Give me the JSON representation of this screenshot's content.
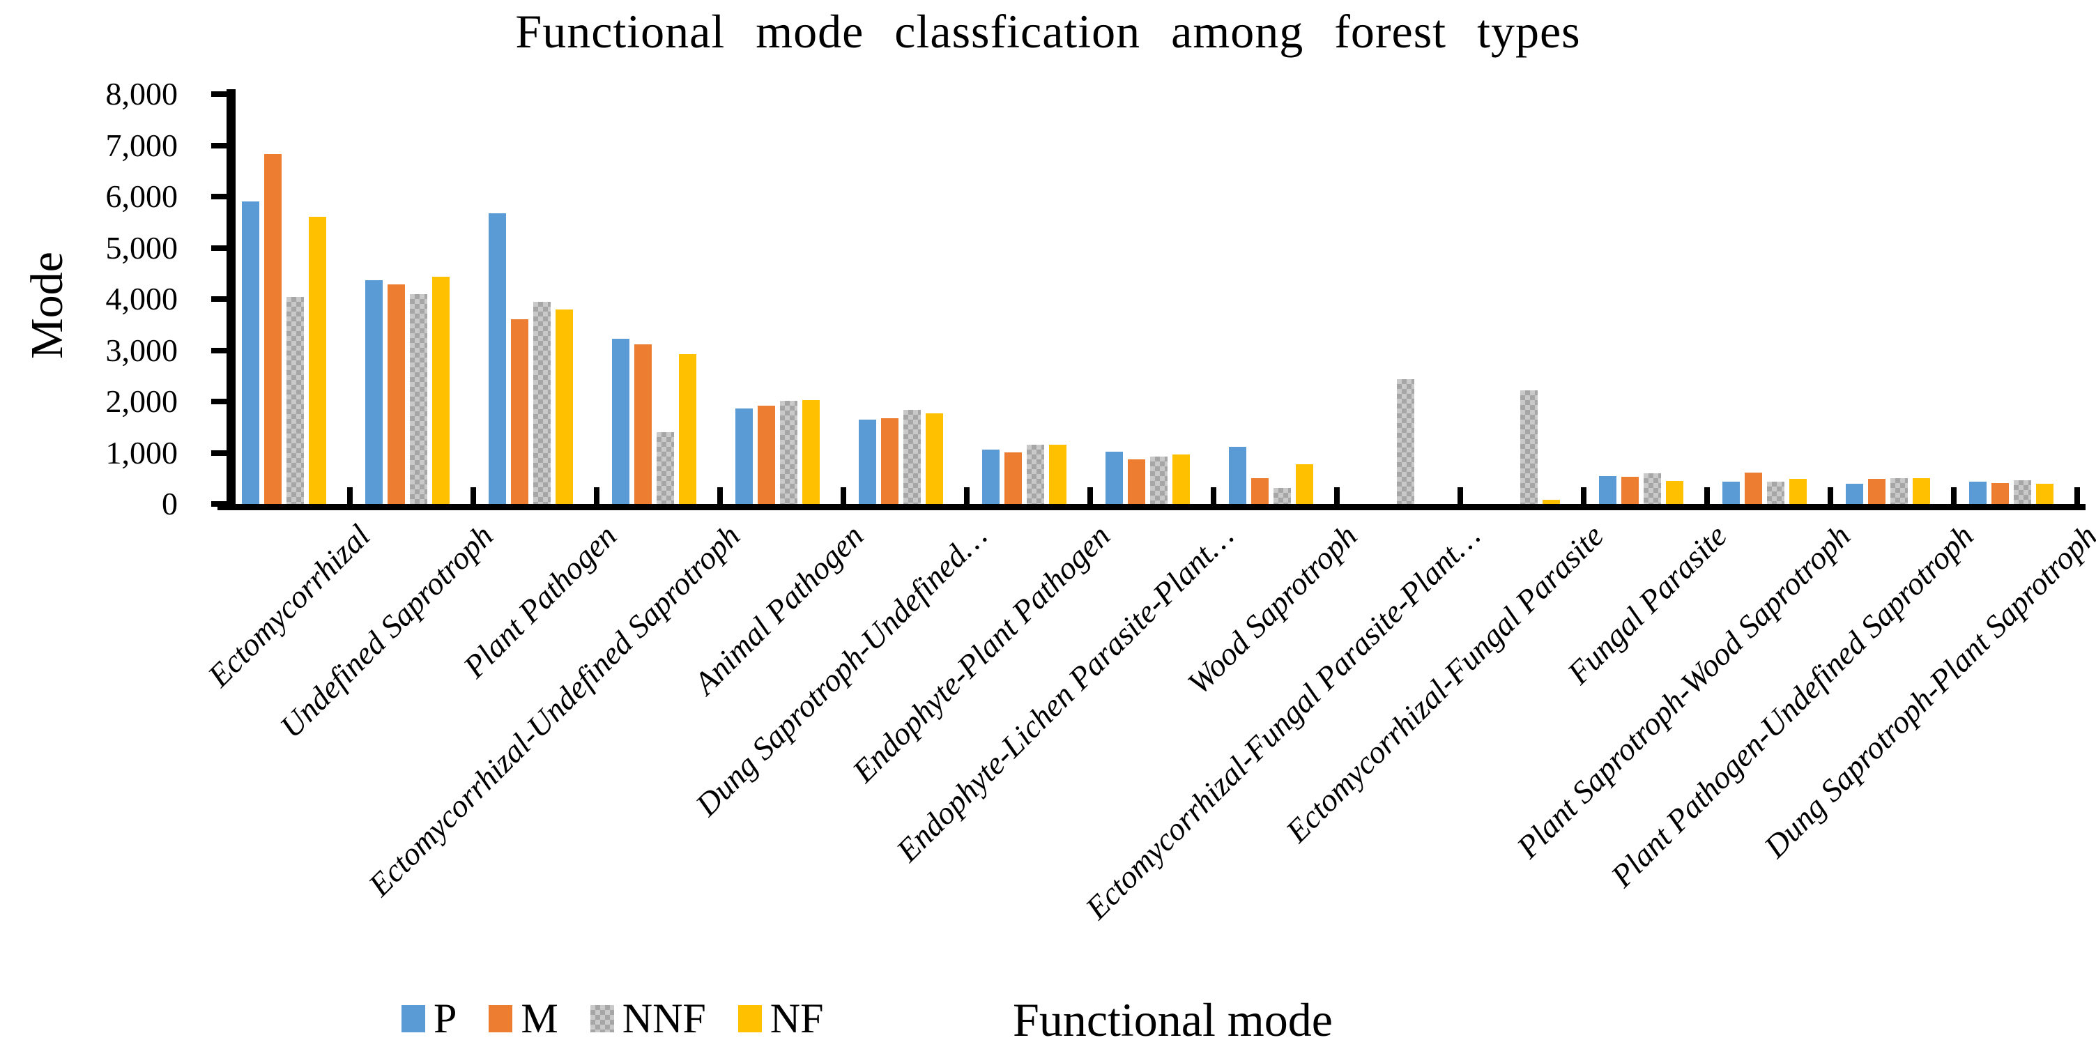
{
  "page": {
    "background": "#ffffff"
  },
  "chart_data": {
    "type": "bar",
    "title": "Functional mode classfication among forest types",
    "xlabel": "Functional mode",
    "ylabel": "Mode",
    "ylim": [
      0,
      8000
    ],
    "y_tick_step": 1000,
    "y_tick_labels": [
      "8,000",
      "7,000",
      "6,000",
      "5,000",
      "4,000",
      "3,000",
      "2,000",
      "1,000",
      "0"
    ],
    "grid": false,
    "legend_position": "bottom-left",
    "axis_color": "#000000",
    "categories": [
      "Ectomycorrhizal",
      "Undefined Saprotroph",
      "Plant Pathogen",
      "Ectomycorrhizal-Undefined Saprotroph",
      "Animal Pathogen",
      "Dung Saprotroph-Undefined…",
      "Endophyte-Plant Pathogen",
      "Endophyte-Lichen Parasite-Plant…",
      "Wood Saprotroph",
      "Ectomycorrhizal-Fungal Parasite-Plant…",
      "Ectomycorrhizal-Fungal Parasite",
      "Fungal Parasite",
      "Plant Saprotroph-Wood Saprotroph",
      "Plant Pathogen-Undefined Saprotroph",
      "Dung Saprotroph-Plant Saprotroph"
    ],
    "series": [
      {
        "name": "P",
        "color": "#5B9BD5",
        "pattern": "solid",
        "values": [
          5900,
          4370,
          5670,
          3230,
          1870,
          1640,
          1060,
          1020,
          1110,
          0,
          0,
          540,
          430,
          390,
          440
        ]
      },
      {
        "name": "M",
        "color": "#ED7D31",
        "pattern": "solid",
        "values": [
          6830,
          4280,
          3610,
          3110,
          1920,
          1680,
          1010,
          870,
          500,
          0,
          0,
          535,
          615,
          495,
          405
        ]
      },
      {
        "name": "NNF",
        "color": "#C9C9C9",
        "pattern": "checker",
        "pattern_color": "#A6A6A6",
        "values": [
          4040,
          4090,
          3950,
          1400,
          2020,
          1830,
          1160,
          920,
          310,
          2440,
          2220,
          600,
          440,
          500,
          465
        ]
      },
      {
        "name": "NF",
        "color": "#FFC000",
        "pattern": "solid",
        "values": [
          5610,
          4430,
          3800,
          2920,
          2030,
          1770,
          1160,
          970,
          770,
          0,
          80,
          450,
          485,
          500,
          390
        ]
      }
    ]
  }
}
